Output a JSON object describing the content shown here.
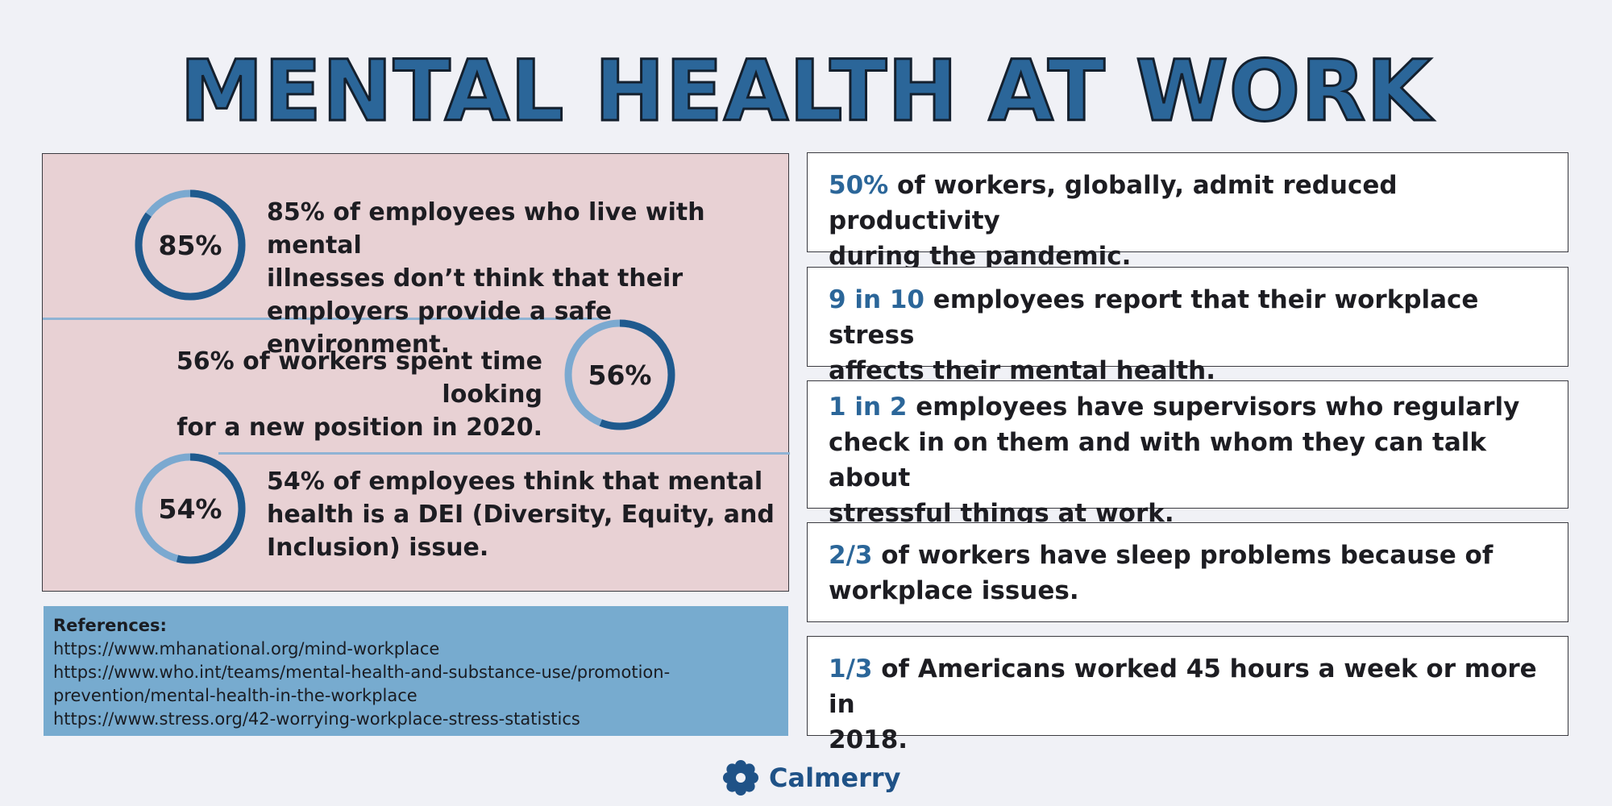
{
  "title": "MENTAL HEALTH AT WORK",
  "left_stats": [
    {
      "percent": 85,
      "label": "85%",
      "text_lines": [
        "85% of employees who live with mental",
        "illnesses don’t think that their",
        "employers provide a safe environment."
      ]
    },
    {
      "percent": 56,
      "label": "56%",
      "text_lines": [
        "56% of workers spent time looking",
        "for a new position in 2020."
      ]
    },
    {
      "percent": 54,
      "label": "54%",
      "text_lines": [
        "54% of employees think that mental",
        "health is a DEI (Diversity, Equity, and",
        "Inclusion) issue."
      ]
    }
  ],
  "references": {
    "heading": "References:",
    "links": [
      "https://www.mhanational.org/mind-workplace",
      "https://www.who.int/teams/mental-health-and-substance-use/promotion-",
      "prevention/mental-health-in-the-workplace",
      "https://www.stress.org/42-worrying-workplace-stress-statistics"
    ]
  },
  "facts": [
    {
      "highlight": "50%",
      "lines": [
        " of workers, globally, admit reduced productivity",
        "during the pandemic."
      ]
    },
    {
      "highlight": "9 in 10",
      "lines": [
        " employees report that their workplace stress",
        "affects their mental health."
      ]
    },
    {
      "highlight": "1 in 2",
      "lines": [
        " employees have supervisors who regularly",
        "check in on them and with whom they can talk about",
        "stressful things at work."
      ]
    },
    {
      "highlight": "2/3",
      "lines": [
        " of workers have sleep problems because of",
        "workplace issues."
      ]
    },
    {
      "highlight": "1/3",
      "lines": [
        " of Americans worked 45 hours a week or more in",
        "2018."
      ]
    }
  ],
  "logo": {
    "name": "Calmerry",
    "icon": "flower-icon"
  },
  "colors": {
    "accent": "#2b6699",
    "ring_dark": "#1f5a8e",
    "ring_light": "#7ba9d0",
    "panel_pink": "#e8d1d4",
    "refs_blue": "#77abcf"
  }
}
